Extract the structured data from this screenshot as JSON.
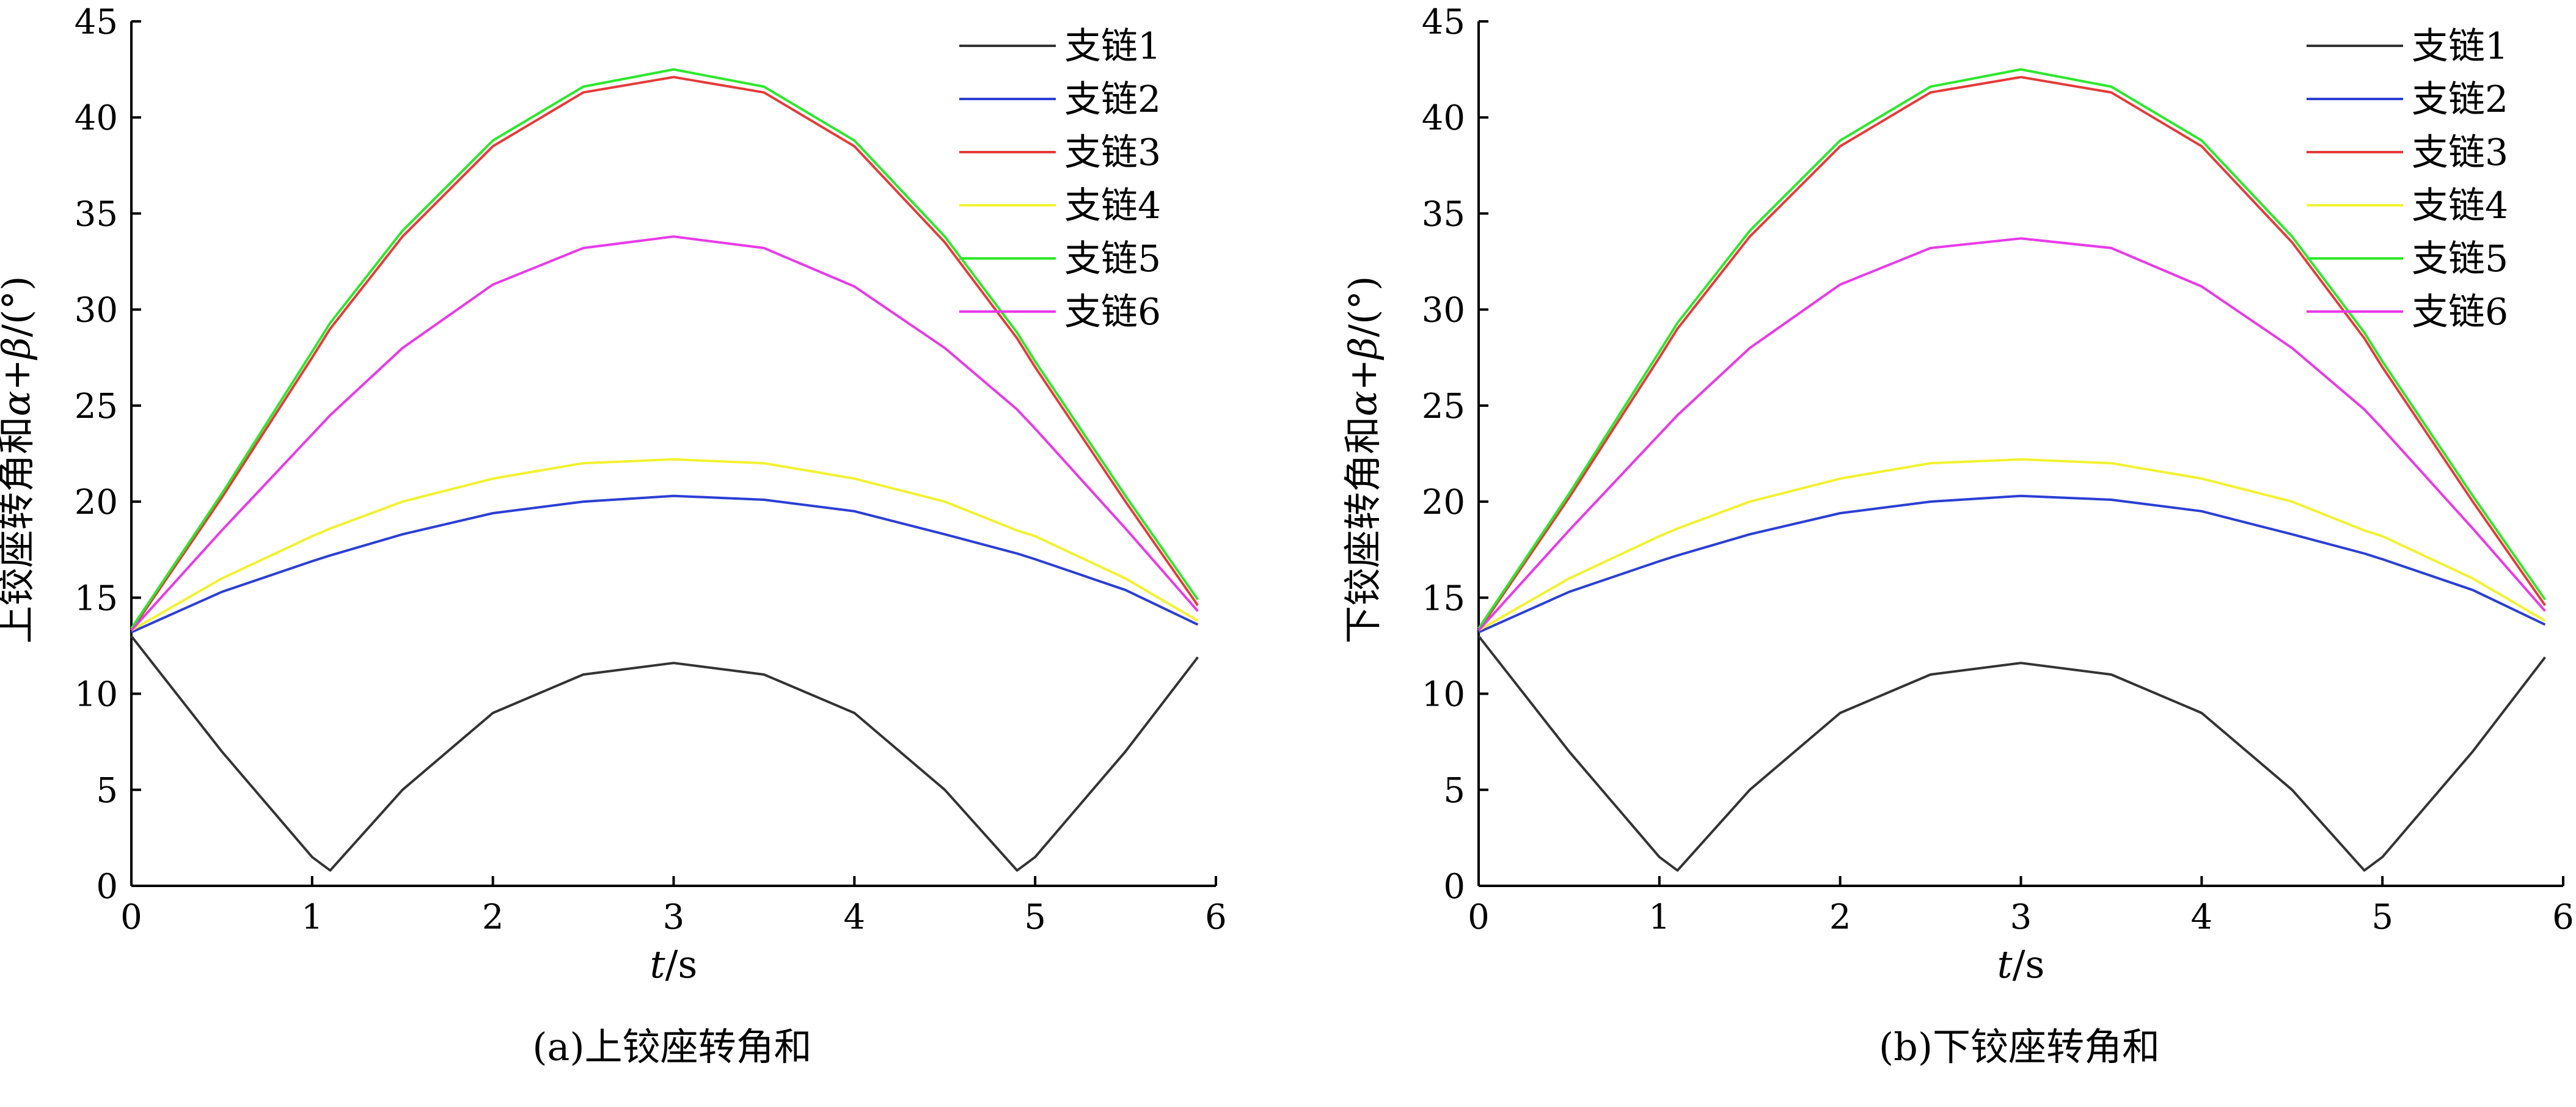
{
  "chart_data": [
    {
      "type": "line",
      "caption": "(a)上铰座转角和",
      "xlabel_var": "t",
      "xlabel_unit": "/s",
      "ylabel_text": "上铰座转角和",
      "ylabel_var": "α+β",
      "ylabel_unit": "/(°)",
      "xlim": [
        0,
        6
      ],
      "ylim": [
        0,
        45
      ],
      "xticks": [
        0,
        1,
        2,
        3,
        4,
        5,
        6
      ],
      "yticks": [
        0,
        5,
        10,
        15,
        20,
        25,
        30,
        35,
        40,
        45
      ],
      "grid": false,
      "legend_position": "top-right",
      "x": [
        0,
        0.5,
        1.0,
        1.1,
        1.5,
        2.0,
        2.5,
        3.0,
        3.5,
        4.0,
        4.5,
        4.9,
        5.0,
        5.5,
        5.9
      ],
      "series": [
        {
          "name": "支链1",
          "color": "#333333",
          "values": [
            13.0,
            7.0,
            1.5,
            0.8,
            5.0,
            9.0,
            11.0,
            11.6,
            11.0,
            9.0,
            5.0,
            0.8,
            1.5,
            7.0,
            11.9
          ]
        },
        {
          "name": "支链2",
          "color": "#2b3fd4",
          "values": [
            13.2,
            15.3,
            16.9,
            17.2,
            18.3,
            19.4,
            20.0,
            20.3,
            20.1,
            19.5,
            18.3,
            17.3,
            17.0,
            15.4,
            13.6
          ]
        },
        {
          "name": "支链3",
          "color": "#e63a3a",
          "values": [
            13.3,
            20.2,
            27.5,
            29.0,
            33.8,
            38.5,
            41.3,
            42.1,
            41.3,
            38.5,
            33.5,
            28.5,
            27.0,
            20.0,
            14.6
          ]
        },
        {
          "name": "支链4",
          "color": "#f2f230",
          "values": [
            13.3,
            16.0,
            18.2,
            18.6,
            20.0,
            21.2,
            22.0,
            22.2,
            22.0,
            21.2,
            20.0,
            18.5,
            18.2,
            16.0,
            13.8
          ]
        },
        {
          "name": "支链5",
          "color": "#2ce82c",
          "values": [
            13.4,
            20.4,
            27.8,
            29.3,
            34.1,
            38.8,
            41.6,
            42.5,
            41.6,
            38.8,
            33.8,
            28.8,
            27.3,
            20.3,
            14.9
          ]
        },
        {
          "name": "支链6",
          "color": "#e83ae8",
          "values": [
            13.3,
            18.5,
            23.5,
            24.5,
            28.0,
            31.3,
            33.2,
            33.8,
            33.2,
            31.2,
            28.0,
            24.8,
            23.8,
            18.6,
            14.3
          ]
        }
      ]
    },
    {
      "type": "line",
      "caption": "(b)下铰座转角和",
      "xlabel_var": "t",
      "xlabel_unit": "/s",
      "ylabel_text": "下铰座转角和",
      "ylabel_var": "α+β",
      "ylabel_unit": "/(°)",
      "xlim": [
        0,
        6
      ],
      "ylim": [
        0,
        45
      ],
      "xticks": [
        0,
        1,
        2,
        3,
        4,
        5,
        6
      ],
      "yticks": [
        0,
        5,
        10,
        15,
        20,
        25,
        30,
        35,
        40,
        45
      ],
      "grid": false,
      "legend_position": "top-right",
      "x": [
        0,
        0.5,
        1.0,
        1.1,
        1.5,
        2.0,
        2.5,
        3.0,
        3.5,
        4.0,
        4.5,
        4.9,
        5.0,
        5.5,
        5.9
      ],
      "series": [
        {
          "name": "支链1",
          "color": "#333333",
          "values": [
            13.0,
            7.0,
            1.5,
            0.8,
            5.0,
            9.0,
            11.0,
            11.6,
            11.0,
            9.0,
            5.0,
            0.8,
            1.5,
            7.0,
            11.9
          ]
        },
        {
          "name": "支链2",
          "color": "#2b3fd4",
          "values": [
            13.2,
            15.3,
            16.9,
            17.2,
            18.3,
            19.4,
            20.0,
            20.3,
            20.1,
            19.5,
            18.3,
            17.3,
            17.0,
            15.4,
            13.6
          ]
        },
        {
          "name": "支链3",
          "color": "#e63a3a",
          "values": [
            13.3,
            20.2,
            27.5,
            29.0,
            33.8,
            38.5,
            41.3,
            42.1,
            41.3,
            38.5,
            33.5,
            28.5,
            27.0,
            20.0,
            14.6
          ]
        },
        {
          "name": "支链4",
          "color": "#f2f230",
          "values": [
            13.3,
            16.0,
            18.2,
            18.6,
            20.0,
            21.2,
            22.0,
            22.2,
            22.0,
            21.2,
            20.0,
            18.5,
            18.2,
            16.0,
            13.8
          ]
        },
        {
          "name": "支链5",
          "color": "#2ce82c",
          "values": [
            13.4,
            20.4,
            27.8,
            29.3,
            34.1,
            38.8,
            41.6,
            42.5,
            41.6,
            38.8,
            33.8,
            28.8,
            27.3,
            20.3,
            14.9
          ]
        },
        {
          "name": "支链6",
          "color": "#e83ae8",
          "values": [
            13.3,
            18.5,
            23.5,
            24.5,
            28.0,
            31.3,
            33.2,
            33.7,
            33.2,
            31.2,
            28.0,
            24.8,
            23.8,
            18.6,
            14.3
          ]
        }
      ]
    }
  ]
}
